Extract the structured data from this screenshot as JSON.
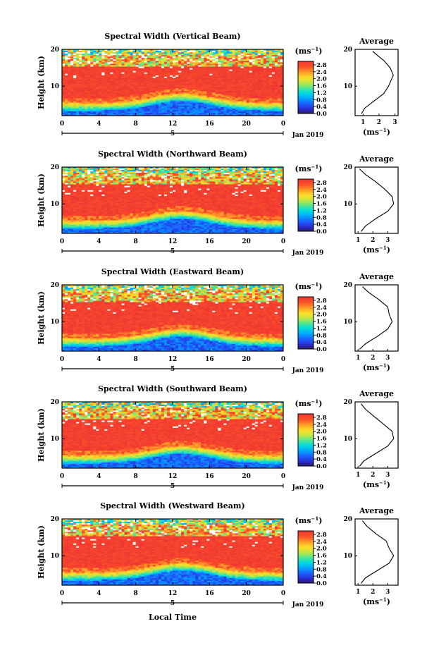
{
  "figure": {
    "xlabel": "Local Time",
    "ylabel": "Height (km)",
    "date_label": "Jan 2019",
    "day_label": "5",
    "colorbar_unit": "(ms",
    "colorbar_unit_exp": "−1",
    "colorbar_unit_close": ")",
    "avg_title": "Average",
    "avg_xunit": "(ms",
    "avg_xunit_exp": "−1",
    "avg_xunit_close": ")"
  },
  "chart_data": [
    {
      "type": "heatmap",
      "title": "Spectral Width (Vertical Beam)",
      "xlabel": "Local Time",
      "ylabel": "Height (km)",
      "xlim": [
        0,
        24
      ],
      "ylim": [
        2,
        20
      ],
      "xticks": [
        "0",
        "4",
        "8",
        "12",
        "16",
        "20",
        "0"
      ],
      "yticks": [
        "10",
        "20"
      ],
      "colorbar": {
        "unit": "(ms−1)",
        "ticks": [
          "0.0",
          "0.4",
          "0.8",
          "1.2",
          "1.6",
          "2.0",
          "2.4",
          "2.8"
        ],
        "range": [
          0,
          3.0
        ]
      },
      "average_profile": {
        "title": "Average",
        "xlabel": "(ms−1)",
        "xlim": [
          0.5,
          3.2
        ],
        "xticks": [
          "1",
          "2",
          "3"
        ],
        "heights": [
          2.5,
          4,
          6,
          8,
          10,
          12,
          13,
          14,
          15,
          16,
          17,
          18,
          19.5
        ],
        "values": [
          0.9,
          1.1,
          1.7,
          2.3,
          2.6,
          2.8,
          2.9,
          2.8,
          2.7,
          2.5,
          2.3,
          2.0,
          1.6
        ]
      }
    },
    {
      "type": "heatmap",
      "title": "Spectral Width (Northward Beam)",
      "xlabel": "Local Time",
      "ylabel": "Height (km)",
      "xlim": [
        0,
        24
      ],
      "ylim": [
        2,
        20
      ],
      "xticks": [
        "0",
        "4",
        "8",
        "12",
        "16",
        "20",
        "0"
      ],
      "yticks": [
        "10",
        "20"
      ],
      "colorbar": {
        "unit": "(ms−1)",
        "ticks": [
          "0.0",
          "0.4",
          "0.8",
          "1.2",
          "1.6",
          "2.0",
          "2.4",
          "2.8"
        ],
        "range": [
          0,
          3.0
        ]
      },
      "average_profile": {
        "title": "Average",
        "xlabel": "(ms−1)",
        "xlim": [
          0.8,
          3.7
        ],
        "xticks": [
          "1",
          "2",
          "3"
        ],
        "heights": [
          2.5,
          4,
          6,
          8,
          10,
          12,
          14,
          16,
          18,
          19.5
        ],
        "values": [
          1.2,
          1.5,
          2.2,
          3.0,
          3.4,
          3.3,
          2.8,
          2.2,
          1.5,
          1.1
        ]
      }
    },
    {
      "type": "heatmap",
      "title": "Spectral Width (Eastward Beam)",
      "xlabel": "Local Time",
      "ylabel": "Height (km)",
      "xlim": [
        0,
        24
      ],
      "ylim": [
        2,
        20
      ],
      "xticks": [
        "0",
        "4",
        "8",
        "12",
        "16",
        "20",
        "0"
      ],
      "yticks": [
        "10",
        "20"
      ],
      "colorbar": {
        "unit": "(ms−1)",
        "ticks": [
          "0.0",
          "0.4",
          "0.8",
          "1.2",
          "1.6",
          "2.0",
          "2.4",
          "2.8"
        ],
        "range": [
          0,
          3.0
        ]
      },
      "average_profile": {
        "title": "Average",
        "xlabel": "(ms−1)",
        "xlim": [
          0.8,
          3.7
        ],
        "xticks": [
          "1",
          "2",
          "3"
        ],
        "heights": [
          2.5,
          4,
          6,
          8,
          10,
          12,
          14,
          16,
          18,
          19.5
        ],
        "values": [
          1.1,
          1.5,
          2.3,
          3.0,
          3.3,
          3.1,
          3.0,
          2.4,
          1.7,
          1.3
        ]
      }
    },
    {
      "type": "heatmap",
      "title": "Spectral Width (Southward Beam)",
      "xlabel": "Local Time",
      "ylabel": "Height (km)",
      "xlim": [
        0,
        24
      ],
      "ylim": [
        2,
        20
      ],
      "xticks": [
        "0",
        "4",
        "8",
        "12",
        "16",
        "20",
        "0"
      ],
      "yticks": [
        "10",
        "20"
      ],
      "colorbar": {
        "unit": "(ms−1)",
        "ticks": [
          "0.0",
          "0.4",
          "0.8",
          "1.2",
          "1.6",
          "2.0",
          "2.4",
          "2.8"
        ],
        "range": [
          0,
          3.0
        ]
      },
      "average_profile": {
        "title": "Average",
        "xlabel": "(ms−1)",
        "xlim": [
          0.8,
          3.7
        ],
        "xticks": [
          "1",
          "2",
          "3"
        ],
        "heights": [
          2.5,
          4,
          6,
          8,
          10,
          12,
          14,
          16,
          18,
          19.5
        ],
        "values": [
          1.1,
          1.4,
          2.2,
          3.0,
          3.4,
          3.3,
          2.7,
          2.1,
          1.5,
          1.2
        ]
      }
    },
    {
      "type": "heatmap",
      "title": "Spectral Width (Westward Beam)",
      "xlabel": "Local Time",
      "ylabel": "Height (km)",
      "xlim": [
        0,
        24
      ],
      "ylim": [
        2,
        20
      ],
      "xticks": [
        "0",
        "4",
        "8",
        "12",
        "16",
        "20",
        "0"
      ],
      "yticks": [
        "10",
        "20"
      ],
      "colorbar": {
        "unit": "(ms−1)",
        "ticks": [
          "0.0",
          "0.4",
          "0.8",
          "1.2",
          "1.6",
          "2.0",
          "2.4",
          "2.8"
        ],
        "range": [
          0,
          3.0
        ]
      },
      "average_profile": {
        "title": "Average",
        "xlabel": "(ms−1)",
        "xlim": [
          0.8,
          3.7
        ],
        "xticks": [
          "1",
          "2",
          "3"
        ],
        "heights": [
          2.5,
          4,
          6,
          8,
          10,
          12,
          14,
          16,
          18,
          19.5
        ],
        "values": [
          1.2,
          1.5,
          2.3,
          3.1,
          3.4,
          3.1,
          2.9,
          2.2,
          1.6,
          1.3
        ]
      }
    }
  ]
}
